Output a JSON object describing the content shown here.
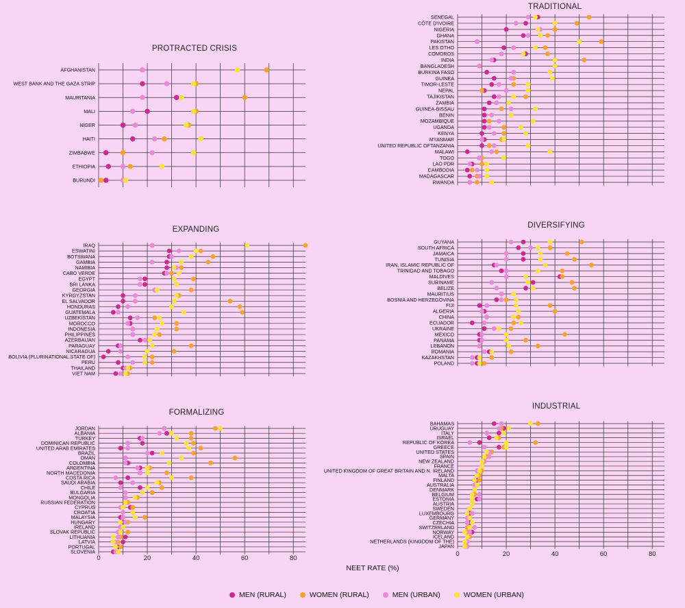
{
  "axis_title": "NEET RATE (%)",
  "legend": [
    {
      "label": "MEN (RURAL)",
      "color": "#cc2a8f"
    },
    {
      "label": "WOMEN (RURAL)",
      "color": "#f7a12e"
    },
    {
      "label": "MEN (URBAN)",
      "color": "#e88ad8"
    },
    {
      "label": "WOMEN (URBAN)",
      "color": "#fbe33a"
    }
  ],
  "chart_data": [
    {
      "type": "scatter",
      "title": "PROTRACTED CRISIS",
      "xlabel": "NEET RATE (%)",
      "xlim": [
        0,
        85
      ],
      "xticks": [
        0,
        20,
        40,
        60,
        80
      ],
      "series_names": [
        "MEN (RURAL)",
        "WOMEN (RURAL)",
        "MEN (URBAN)",
        "WOMEN (URBAN)"
      ],
      "categories": [
        "AFGHANISTAN",
        "WEST BANK AND THE GAZA STRIP",
        "MAURITANIA",
        "MALI",
        "NIGER",
        "HAITI",
        "ZIMBABWE",
        "ETHIOPIA",
        "BURUNDI"
      ],
      "values": [
        [
          18,
          69,
          18,
          57
        ],
        [
          18,
          40,
          28,
          39
        ],
        [
          32,
          60,
          18,
          34
        ],
        [
          20,
          40,
          14,
          39
        ],
        [
          10,
          37,
          15,
          36
        ],
        [
          14,
          27,
          23,
          42
        ],
        [
          3,
          10,
          22,
          39
        ],
        [
          4,
          13,
          10,
          26
        ],
        [
          3,
          1,
          10,
          11
        ]
      ]
    },
    {
      "type": "scatter",
      "title": "TRADITIONAL",
      "xlabel": "NEET RATE (%)",
      "xlim": [
        0,
        85
      ],
      "xticks": [
        0,
        20,
        40,
        60,
        80
      ],
      "series_names": [
        "MEN (RURAL)",
        "WOMEN (RURAL)",
        "MEN (URBAN)",
        "WOMEN (URBAN)"
      ],
      "categories": [
        "SENEGAL",
        "CÔTE D'IVOIRE",
        "NIGERIA",
        "GHANA",
        "PAKISTAN",
        "LES OTHO",
        "COMOROS",
        "INDIA",
        "BANGLADESH",
        "BURKINA FASO",
        "GUINEA",
        "TIMOR-LESTE",
        "NEPAL",
        "TAJIKISTAN",
        "ZAMBIA",
        "GUINEA-BISSAU",
        "BENIN",
        "MOZAMBIQUE",
        "UGANDA",
        "KENYA",
        "MYANMAR",
        "UNITED REPUBLIC OFTANZANIA",
        "MALAWI",
        "TOGO",
        "LAO PDR",
        "CAMBODIA",
        "MADAGASCAR",
        "RWANDA"
      ],
      "values": [
        [
          33,
          54,
          29,
          32
        ],
        [
          28,
          49,
          24,
          40
        ],
        [
          20,
          40,
          34,
          33
        ],
        [
          27,
          37,
          29,
          34
        ],
        [
          8,
          59,
          8,
          50
        ],
        [
          19,
          36,
          23,
          32
        ],
        [
          28,
          37,
          18,
          27
        ],
        [
          15,
          52,
          14,
          40
        ],
        [
          9,
          40,
          9,
          40
        ],
        [
          12,
          38,
          23,
          38
        ],
        [
          15,
          23,
          22,
          39
        ],
        [
          14,
          23,
          17,
          29
        ],
        [
          11,
          10,
          20,
          29
        ],
        [
          15,
          28,
          17,
          23
        ],
        [
          13,
          16,
          16,
          21
        ],
        [
          11,
          18,
          22,
          32
        ],
        [
          11,
          22,
          14,
          22
        ],
        [
          11,
          13,
          17,
          31
        ],
        [
          11,
          19,
          13,
          26
        ],
        [
          10,
          19,
          15,
          28
        ],
        [
          11,
          18,
          10,
          19
        ],
        [
          10,
          13,
          15,
          29
        ],
        [
          4,
          16,
          14,
          38
        ],
        [
          9,
          10,
          9,
          19
        ],
        [
          6,
          10,
          5,
          12
        ],
        [
          4,
          6,
          8,
          12
        ],
        [
          5,
          8,
          9,
          12
        ],
        [
          5,
          8,
          5,
          14
        ]
      ]
    },
    {
      "type": "scatter",
      "title": "EXPANDING",
      "xlabel": "NEET RATE (%)",
      "xlim": [
        0,
        85
      ],
      "xticks": [
        0,
        20,
        40,
        60,
        80
      ],
      "series_names": [
        "MEN (RURAL)",
        "WOMEN (RURAL)",
        "MEN (URBAN)",
        "WOMEN (URBAN)"
      ],
      "categories": [
        "IRAQ",
        "ESWATINI",
        "BOTSWANA",
        "GAMBIA",
        "NAMIBIA",
        "CABO VERDE",
        "EGYPT",
        "SRI LANKA",
        "GEORGIA",
        "KYRGYZSTAN",
        "EL SALVADOR",
        "HONDURAS",
        "GUATEMALA",
        "UZBEKISTAN",
        "MOROCCO",
        "INDONESIA",
        "PHILIPPINES",
        "AZERBAIJAN",
        "PARAGUAY",
        "NICARAGUA",
        "BOLIVIA (PLURINATIONAL STATE OF)",
        "PERU",
        "THAILAND",
        "VIET NAM"
      ],
      "values": [
        [
          22,
          85,
          22,
          61
        ],
        [
          29,
          42,
          33,
          40
        ],
        [
          29,
          47,
          30,
          38
        ],
        [
          28,
          45,
          22,
          34
        ],
        [
          28,
          34,
          32,
          31
        ],
        [
          27,
          30,
          28,
          33
        ],
        [
          19,
          39,
          17,
          31
        ],
        [
          19,
          32,
          17,
          32
        ],
        [
          23,
          38,
          23,
          24
        ],
        [
          10,
          33,
          15,
          32
        ],
        [
          10,
          54,
          15,
          31
        ],
        [
          8,
          58,
          12,
          30
        ],
        [
          6,
          59,
          8,
          35
        ],
        [
          13,
          23,
          16,
          25
        ],
        [
          13,
          32,
          12,
          26
        ],
        [
          14,
          32,
          14,
          24
        ],
        [
          14,
          25,
          14,
          23
        ],
        [
          17,
          21,
          19,
          21
        ],
        [
          8,
          38,
          9,
          22
        ],
        [
          4,
          31,
          9,
          20
        ],
        [
          2,
          22,
          12,
          19
        ],
        [
          8,
          22,
          14,
          19
        ],
        [
          10,
          13,
          11,
          12
        ],
        [
          7,
          12,
          9,
          11
        ]
      ]
    },
    {
      "type": "scatter",
      "title": "DIVERSIFYING",
      "xlabel": "NEET RATE (%)",
      "xlim": [
        0,
        85
      ],
      "xticks": [
        0,
        20,
        40,
        60,
        80
      ],
      "series_names": [
        "MEN (RURAL)",
        "WOMEN (RURAL)",
        "MEN (URBAN)",
        "WOMEN (URBAN)"
      ],
      "categories": [
        "GUYANA",
        "SOUTH AFRICA",
        "JAMAICA",
        "TUNISIA",
        "IRAN, ISLAMIC REPUBLIC OF",
        "TRINIDAD AND TOBAGO",
        "MALDIVES",
        "SURINAME",
        "BELIZE",
        "MAURITIUS",
        "BOSNIA AND HERZEGOVINA",
        "FIJI",
        "ALGERIA",
        "CHINA",
        "ECUADOR",
        "UKRAINE",
        "MEXICO",
        "PANAMA",
        "LEBANON",
        "ROMANIA",
        "KAZAKHSTAN",
        "POLAND"
      ],
      "values": [
        [
          27,
          51,
          22,
          38
        ],
        [
          25,
          38,
          30,
          33
        ],
        [
          27,
          45,
          20,
          34
        ],
        [
          27,
          48,
          20,
          34
        ],
        [
          15,
          55,
          16,
          36
        ],
        [
          18,
          43,
          20,
          33
        ],
        [
          42,
          43,
          20,
          28
        ],
        [
          31,
          47,
          14,
          29
        ],
        [
          28,
          48,
          16,
          31
        ],
        [
          18,
          18,
          18,
          23
        ],
        [
          16,
          20,
          18,
          24
        ],
        [
          9,
          38,
          12,
          24
        ],
        [
          11,
          40,
          10,
          25
        ],
        [
          12,
          25,
          12,
          23
        ],
        [
          6,
          23,
          11,
          26
        ],
        [
          11,
          22,
          15,
          17
        ],
        [
          9,
          44,
          10,
          20
        ],
        [
          9,
          28,
          10,
          20
        ],
        [
          9,
          33,
          9,
          21
        ],
        [
          13,
          22,
          11,
          14
        ],
        [
          8,
          14,
          6,
          9
        ],
        [
          8,
          11,
          6,
          9
        ]
      ]
    },
    {
      "type": "scatter",
      "title": "FORMALIZING",
      "xlabel": "NEET RATE (%)",
      "xlim": [
        0,
        85
      ],
      "xticks": [
        0,
        20,
        40,
        60,
        80
      ],
      "series_names": [
        "MEN (RURAL)",
        "WOMEN (RURAL)",
        "MEN (URBAN)",
        "WOMEN (URBAN)"
      ],
      "categories": [
        "JORDAN",
        "ALBANIA",
        "TURKEY",
        "DOMINICAN REPUBLIC",
        "UNITED ARAB EMIRATES",
        "BRAZIL",
        "OMAN",
        "COLOMBIA",
        "ARGENTINA",
        "NORTH MACEDONIA",
        "COSTA RICA",
        "SAUDI ARABIA",
        "CHILE",
        "BULGARIA",
        "MONGOLIA",
        "RUSSIAN FEDERATION",
        "CYPRUS",
        "CROATIA",
        "MALAYSIA",
        "HUNGARY",
        "IRELAND",
        "SLOVAK REPUBLIC",
        "LITHUANIA",
        "LATVIA",
        "PORTUGAL",
        "SLOVENIA"
      ],
      "values": [
        [
          27,
          48,
          27,
          50
        ],
        [
          28,
          38,
          25,
          30
        ],
        [
          17,
          38,
          18,
          32
        ],
        [
          18,
          39,
          12,
          36
        ],
        [
          9,
          42,
          12,
          37
        ],
        [
          22,
          39,
          20,
          26
        ],
        [
          11,
          56,
          11,
          34
        ],
        [
          12,
          46,
          11,
          29
        ],
        [
          17,
          21,
          16,
          20
        ],
        [
          17,
          28,
          17,
          20
        ],
        [
          12,
          38,
          7,
          30
        ],
        [
          9,
          25,
          14,
          24
        ],
        [
          17,
          26,
          9,
          20
        ],
        [
          22,
          22,
          11,
          18
        ],
        [
          11,
          16,
          11,
          15
        ],
        [
          12,
          12,
          11,
          11
        ],
        [
          13,
          14,
          9,
          10
        ],
        [
          14,
          14,
          10,
          14
        ],
        [
          9,
          19,
          10,
          15
        ],
        [
          10,
          12,
          11,
          9
        ],
        [
          9,
          10,
          9,
          10
        ],
        [
          8,
          12,
          8,
          9
        ],
        [
          11,
          9,
          8,
          6
        ],
        [
          10,
          8,
          7,
          6
        ],
        [
          8,
          9,
          7,
          7
        ],
        [
          6,
          8,
          7,
          8
        ]
      ]
    },
    {
      "type": "scatter",
      "title": "INDUSTRIAL",
      "xlabel": "NEET RATE (%)",
      "xlim": [
        0,
        85
      ],
      "xticks": [
        0,
        20,
        40,
        60,
        80
      ],
      "series_names": [
        "MEN (RURAL)",
        "WOMEN (RURAL)",
        "MEN (URBAN)",
        "WOMEN (URBAN)"
      ],
      "categories": [
        "BAHAMAS",
        "URUGUAY",
        "ITALY",
        "ISRAEL",
        "REPUBLIC OF KOREA",
        "GREECE",
        "UNITED STATES",
        "SPAIN",
        "NEW ZEALAND",
        "FRANCE",
        "UNITED KINGDOM OF GREAT BRITAIN AND N. IRELAND",
        "MALTA",
        "FINLAND",
        "AUSTRALIA",
        "DENMARK",
        "BELGIUM",
        "ESTONIA",
        "AUSTRIA",
        "SWEDEN",
        "LUXEMBOURG",
        "GERMANY",
        "CZECHIA",
        "SWITZERLAND",
        "NORWAY",
        "ICELAND",
        "NETHERLANDS (KINGDOM OF THE)",
        "JAPAN"
      ],
      "values": [
        [
          15,
          33,
          18,
          30
        ],
        [
          19,
          18,
          17,
          21
        ],
        [
          17,
          19,
          12,
          19
        ],
        [
          13,
          17,
          16,
          16
        ],
        [
          9,
          32,
          5,
          20
        ],
        [
          17,
          19,
          11,
          20
        ],
        [
          14,
          14,
          13,
          12
        ],
        [
          12,
          12,
          13,
          11
        ],
        [
          11,
          11,
          11,
          10
        ],
        [
          10,
          10,
          10,
          10
        ],
        [
          8,
          10,
          8,
          9
        ],
        [
          8,
          9,
          8,
          8
        ],
        [
          8,
          9,
          7,
          7
        ],
        [
          8,
          8,
          7,
          8
        ],
        [
          7,
          7,
          7,
          7
        ],
        [
          7,
          7,
          9,
          6
        ],
        [
          8,
          6,
          9,
          6
        ],
        [
          6,
          6,
          6,
          6
        ],
        [
          5,
          5,
          5,
          5
        ],
        [
          5,
          6,
          6,
          4
        ],
        [
          5,
          5,
          4,
          5
        ],
        [
          5,
          4,
          4,
          6
        ],
        [
          5,
          4,
          7,
          5
        ],
        [
          6,
          4,
          5,
          3
        ],
        [
          4,
          5,
          4,
          4
        ],
        [
          4,
          3,
          4,
          3
        ],
        [
          3,
          3,
          4,
          3
        ]
      ]
    }
  ]
}
